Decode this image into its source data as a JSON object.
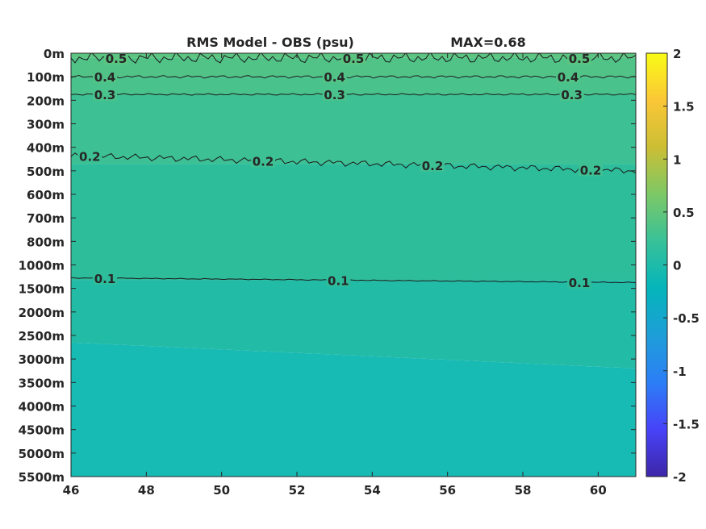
{
  "chart_data": {
    "type": "heatmap",
    "title_left": "RMS Model - OBS (psu)",
    "title_right": "MAX=0.68",
    "x_ticks": [
      46,
      48,
      50,
      52,
      54,
      56,
      58,
      60
    ],
    "xlim": [
      46,
      61
    ],
    "y_ticks": [
      "0m",
      "100m",
      "200m",
      "300m",
      "400m",
      "500m",
      "600m",
      "700m",
      "800m",
      "1000m",
      "1500m",
      "2000m",
      "2500m",
      "3000m",
      "3500m",
      "4000m",
      "4500m",
      "5000m",
      "5500m"
    ],
    "colorbar": {
      "ticks": [
        "2",
        "1.5",
        "1",
        "0.5",
        "0",
        "-0.5",
        "-1",
        "-1.5",
        "-2"
      ],
      "range": [
        -2,
        2
      ],
      "colormap": [
        "#3e26a8",
        "#4743f8",
        "#2c7ef6",
        "#1e9ed8",
        "#04b5ba",
        "#38c199",
        "#7cc866",
        "#ccbe34",
        "#fac737",
        "#f9fb15"
      ]
    },
    "fill_bands": [
      {
        "level": 0.5,
        "color": "#5bc480"
      },
      {
        "level": 0.4,
        "color": "#52c387"
      },
      {
        "level": 0.3,
        "color": "#4ac28c"
      },
      {
        "level": 0.2,
        "color": "#3dc093"
      },
      {
        "level": 0.1,
        "color": "#2ebd9b"
      },
      {
        "level": 0.05,
        "color": "#22bba6"
      },
      {
        "level": 0.0,
        "color": "#18bab4"
      }
    ],
    "contours": [
      {
        "level": 0.5,
        "label": "0.5",
        "depth_row": 0.2,
        "jitter": 0.25,
        "labels_at_x": [
          47.2,
          53.5,
          59.5
        ]
      },
      {
        "level": 0.4,
        "label": "0.4",
        "depth_row": 1.0,
        "jitter": 0.06,
        "labels_at_x": [
          46.9,
          53.0,
          59.2
        ]
      },
      {
        "level": 0.3,
        "label": "0.3",
        "depth_row": 1.75,
        "jitter": 0.04,
        "labels_at_x": [
          46.9,
          53.0,
          59.3
        ]
      },
      {
        "level": 0.2,
        "label": "0.2",
        "depth_row_start": 4.35,
        "depth_row_end": 5.0,
        "jitter": 0.15,
        "labels_at_x": [
          46.5,
          51.1,
          55.6,
          59.8
        ]
      },
      {
        "level": 0.1,
        "label": "0.1",
        "depth_row_start": 9.55,
        "depth_row_end": 9.75,
        "jitter": 0.02,
        "labels_at_x": [
          46.9,
          53.1,
          59.5
        ]
      }
    ]
  }
}
